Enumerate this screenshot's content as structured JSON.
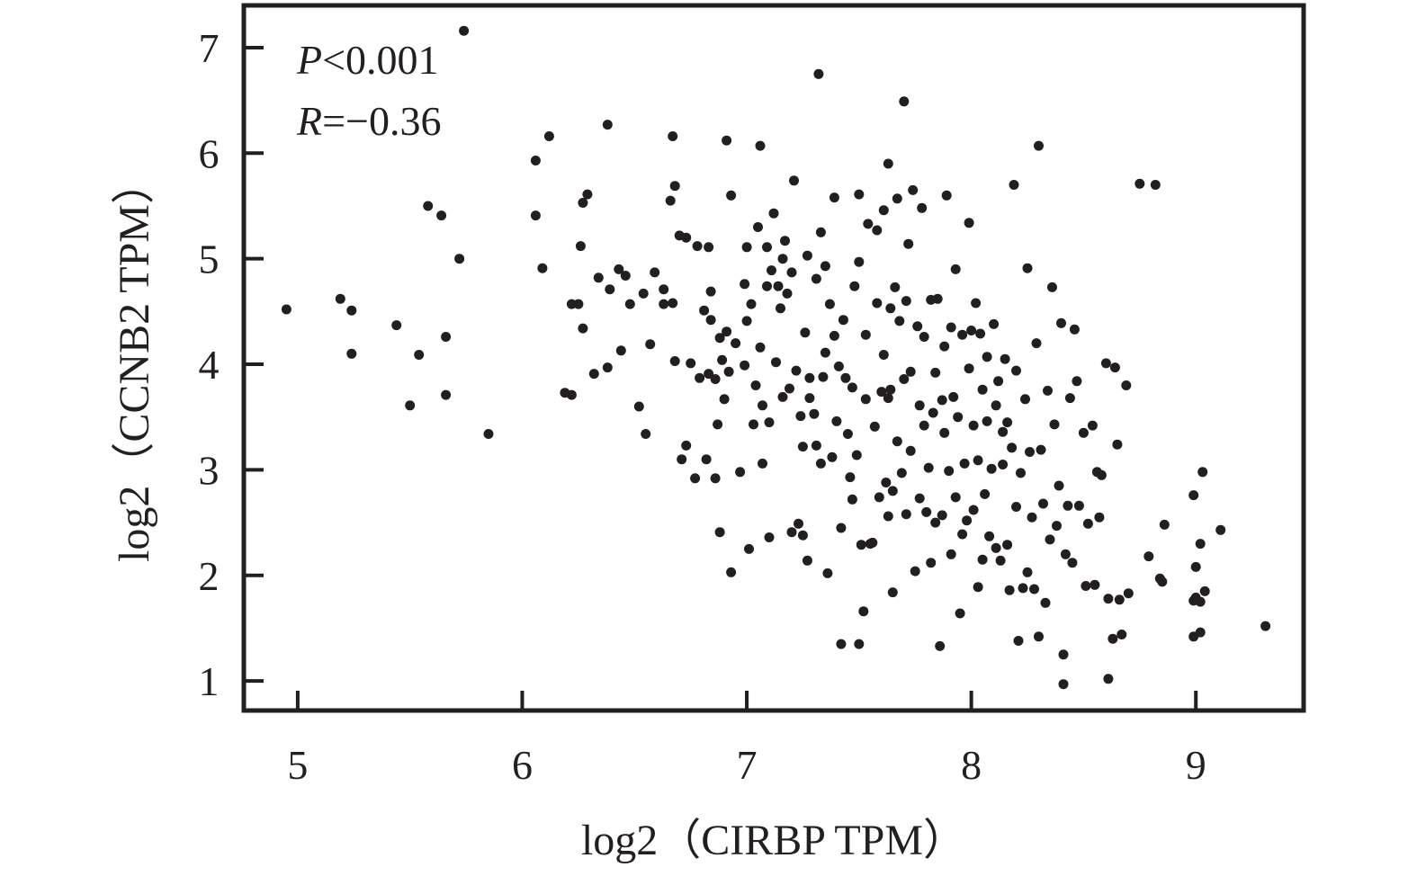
{
  "chart_data": {
    "type": "scatter",
    "xlabel": "log2（CIRBP TPM）",
    "ylabel": "log2（CCNB2 TPM）",
    "xlim": [
      4.76,
      9.48
    ],
    "ylim": [
      0.72,
      7.4
    ],
    "x_ticks": [
      5,
      6,
      7,
      8,
      9
    ],
    "y_ticks": [
      1,
      2,
      3,
      4,
      5,
      6,
      7
    ],
    "grid": false,
    "annotations": {
      "p_symbol": "P",
      "p_value": "<0.001",
      "r_symbol": "R",
      "r_value": "=−0.36"
    },
    "point_color": "#231f20",
    "points": [
      [
        4.95,
        4.52
      ],
      [
        5.19,
        4.62
      ],
      [
        5.24,
        4.51
      ],
      [
        5.24,
        4.1
      ],
      [
        5.44,
        4.37
      ],
      [
        5.5,
        3.61
      ],
      [
        5.54,
        4.09
      ],
      [
        5.58,
        5.5
      ],
      [
        5.64,
        5.41
      ],
      [
        5.66,
        4.26
      ],
      [
        5.66,
        3.71
      ],
      [
        5.72,
        5.0
      ],
      [
        5.74,
        7.16
      ],
      [
        5.85,
        3.34
      ],
      [
        6.06,
        5.93
      ],
      [
        6.06,
        5.41
      ],
      [
        6.09,
        4.91
      ],
      [
        6.12,
        6.16
      ],
      [
        6.19,
        3.73
      ],
      [
        6.22,
        4.57
      ],
      [
        6.22,
        3.71
      ],
      [
        6.25,
        4.57
      ],
      [
        6.26,
        5.12
      ],
      [
        6.27,
        4.34
      ],
      [
        6.27,
        5.53
      ],
      [
        6.29,
        5.61
      ],
      [
        6.32,
        3.91
      ],
      [
        6.34,
        4.82
      ],
      [
        6.38,
        3.97
      ],
      [
        6.38,
        6.27
      ],
      [
        6.39,
        4.71
      ],
      [
        6.43,
        4.9
      ],
      [
        6.44,
        4.13
      ],
      [
        6.46,
        4.84
      ],
      [
        6.48,
        4.57
      ],
      [
        6.52,
        3.6
      ],
      [
        6.54,
        4.67
      ],
      [
        6.55,
        3.34
      ],
      [
        6.57,
        4.19
      ],
      [
        6.59,
        4.87
      ],
      [
        6.63,
        4.71
      ],
      [
        6.63,
        4.57
      ],
      [
        6.66,
        5.55
      ],
      [
        6.67,
        4.58
      ],
      [
        6.67,
        6.16
      ],
      [
        6.68,
        4.03
      ],
      [
        6.68,
        5.69
      ],
      [
        6.7,
        5.22
      ],
      [
        6.71,
        3.1
      ],
      [
        6.73,
        5.2
      ],
      [
        6.73,
        3.23
      ],
      [
        6.75,
        4.01
      ],
      [
        6.77,
        2.92
      ],
      [
        6.78,
        5.12
      ],
      [
        6.79,
        3.87
      ],
      [
        6.81,
        4.51
      ],
      [
        6.82,
        3.1
      ],
      [
        6.83,
        5.11
      ],
      [
        6.83,
        3.91
      ],
      [
        6.84,
        4.69
      ],
      [
        6.84,
        4.42
      ],
      [
        6.86,
        2.92
      ],
      [
        6.86,
        3.86
      ],
      [
        6.87,
        3.43
      ],
      [
        6.88,
        4.25
      ],
      [
        6.88,
        2.41
      ],
      [
        6.89,
        4.04
      ],
      [
        6.9,
        3.67
      ],
      [
        6.91,
        6.12
      ],
      [
        6.91,
        4.31
      ],
      [
        6.92,
        3.93
      ],
      [
        6.93,
        2.03
      ],
      [
        6.93,
        5.6
      ],
      [
        6.95,
        4.2
      ],
      [
        6.97,
        2.98
      ],
      [
        6.99,
        4.76
      ],
      [
        6.99,
        3.99
      ],
      [
        7.0,
        4.41
      ],
      [
        7.0,
        5.11
      ],
      [
        7.01,
        2.25
      ],
      [
        7.02,
        4.57
      ],
      [
        7.03,
        3.43
      ],
      [
        7.04,
        3.8
      ],
      [
        7.05,
        5.3
      ],
      [
        7.06,
        6.07
      ],
      [
        7.06,
        4.16
      ],
      [
        7.07,
        3.61
      ],
      [
        7.07,
        3.06
      ],
      [
        7.09,
        5.11
      ],
      [
        7.09,
        4.74
      ],
      [
        7.1,
        3.45
      ],
      [
        7.1,
        2.36
      ],
      [
        7.11,
        4.89
      ],
      [
        7.12,
        5.43
      ],
      [
        7.13,
        4.02
      ],
      [
        7.14,
        4.74
      ],
      [
        7.15,
        4.53
      ],
      [
        7.16,
        3.69
      ],
      [
        7.16,
        5.0
      ],
      [
        7.17,
        5.17
      ],
      [
        7.18,
        4.67
      ],
      [
        7.19,
        3.77
      ],
      [
        7.2,
        4.87
      ],
      [
        7.2,
        2.41
      ],
      [
        7.21,
        5.74
      ],
      [
        7.22,
        3.94
      ],
      [
        7.23,
        2.49
      ],
      [
        7.24,
        3.51
      ],
      [
        7.25,
        2.38
      ],
      [
        7.25,
        3.22
      ],
      [
        7.26,
        4.3
      ],
      [
        7.27,
        5.03
      ],
      [
        7.27,
        2.14
      ],
      [
        7.28,
        3.68
      ],
      [
        7.28,
        3.87
      ],
      [
        7.3,
        3.53
      ],
      [
        7.31,
        4.81
      ],
      [
        7.31,
        3.23
      ],
      [
        7.32,
        6.75
      ],
      [
        7.33,
        3.06
      ],
      [
        7.33,
        5.25
      ],
      [
        7.34,
        3.88
      ],
      [
        7.35,
        4.93
      ],
      [
        7.35,
        4.11
      ],
      [
        7.36,
        2.02
      ],
      [
        7.37,
        4.57
      ],
      [
        7.38,
        3.12
      ],
      [
        7.39,
        5.58
      ],
      [
        7.39,
        4.27
      ],
      [
        7.4,
        3.46
      ],
      [
        7.41,
        3.98
      ],
      [
        7.42,
        1.35
      ],
      [
        7.42,
        2.45
      ],
      [
        7.43,
        4.42
      ],
      [
        7.44,
        3.87
      ],
      [
        7.45,
        3.34
      ],
      [
        7.46,
        2.93
      ],
      [
        7.47,
        3.78
      ],
      [
        7.47,
        2.72
      ],
      [
        7.48,
        4.74
      ],
      [
        7.49,
        3.14
      ],
      [
        7.5,
        1.35
      ],
      [
        7.5,
        4.97
      ],
      [
        7.5,
        5.61
      ],
      [
        7.51,
        2.29
      ],
      [
        7.52,
        1.66
      ],
      [
        7.53,
        3.67
      ],
      [
        7.53,
        4.28
      ],
      [
        7.54,
        5.33
      ],
      [
        7.55,
        2.3
      ],
      [
        7.56,
        2.31
      ],
      [
        7.57,
        3.41
      ],
      [
        7.58,
        4.58
      ],
      [
        7.58,
        5.27
      ],
      [
        7.59,
        2.74
      ],
      [
        7.6,
        3.74
      ],
      [
        7.61,
        4.09
      ],
      [
        7.61,
        5.46
      ],
      [
        7.62,
        2.88
      ],
      [
        7.63,
        2.56
      ],
      [
        7.63,
        5.9
      ],
      [
        7.64,
        4.53
      ],
      [
        7.64,
        3.76
      ],
      [
        7.65,
        1.84
      ],
      [
        7.65,
        2.8
      ],
      [
        7.66,
        4.73
      ],
      [
        7.67,
        5.57
      ],
      [
        7.67,
        3.27
      ],
      [
        7.68,
        4.41
      ],
      [
        7.69,
        2.97
      ],
      [
        7.7,
        6.49
      ],
      [
        7.7,
        3.86
      ],
      [
        7.71,
        4.6
      ],
      [
        7.71,
        2.58
      ],
      [
        7.72,
        5.14
      ],
      [
        7.73,
        3.93
      ],
      [
        7.73,
        3.18
      ],
      [
        7.74,
        5.65
      ],
      [
        7.75,
        2.04
      ],
      [
        7.76,
        4.36
      ],
      [
        7.77,
        3.61
      ],
      [
        7.77,
        2.73
      ],
      [
        7.78,
        5.48
      ],
      [
        7.79,
        3.42
      ],
      [
        7.79,
        4.26
      ],
      [
        7.8,
        2.6
      ],
      [
        7.81,
        3.02
      ],
      [
        7.82,
        4.61
      ],
      [
        7.82,
        2.12
      ],
      [
        7.83,
        3.54
      ],
      [
        7.84,
        2.5
      ],
      [
        7.84,
        3.92
      ],
      [
        7.85,
        4.62
      ],
      [
        7.86,
        1.33
      ],
      [
        7.87,
        2.57
      ],
      [
        7.87,
        3.66
      ],
      [
        7.88,
        4.17
      ],
      [
        7.88,
        3.35
      ],
      [
        7.89,
        5.6
      ],
      [
        7.9,
        2.99
      ],
      [
        7.91,
        2.2
      ],
      [
        7.91,
        4.35
      ],
      [
        7.92,
        3.69
      ],
      [
        7.93,
        2.74
      ],
      [
        7.93,
        4.9
      ],
      [
        7.94,
        3.5
      ],
      [
        7.95,
        1.64
      ],
      [
        7.96,
        2.39
      ],
      [
        7.96,
        4.28
      ],
      [
        7.97,
        3.06
      ],
      [
        7.98,
        2.52
      ],
      [
        7.99,
        5.34
      ],
      [
        7.99,
        3.96
      ],
      [
        8.0,
        4.32
      ],
      [
        8.01,
        2.62
      ],
      [
        8.01,
        3.42
      ],
      [
        8.02,
        4.58
      ],
      [
        8.03,
        1.89
      ],
      [
        8.03,
        3.09
      ],
      [
        8.04,
        4.29
      ],
      [
        8.05,
        2.15
      ],
      [
        8.05,
        3.76
      ],
      [
        8.06,
        2.77
      ],
      [
        8.07,
        3.46
      ],
      [
        8.07,
        4.07
      ],
      [
        8.08,
        2.37
      ],
      [
        8.09,
        3.01
      ],
      [
        8.1,
        4.38
      ],
      [
        8.11,
        3.61
      ],
      [
        8.11,
        2.26
      ],
      [
        8.12,
        3.84
      ],
      [
        8.13,
        2.14
      ],
      [
        8.14,
        3.05
      ],
      [
        8.15,
        4.05
      ],
      [
        8.16,
        2.29
      ],
      [
        8.16,
        3.45
      ],
      [
        8.17,
        1.86
      ],
      [
        8.18,
        3.21
      ],
      [
        8.19,
        5.7
      ],
      [
        8.2,
        2.65
      ],
      [
        8.2,
        3.94
      ],
      [
        8.21,
        1.38
      ],
      [
        8.22,
        2.97
      ],
      [
        8.23,
        1.88
      ],
      [
        8.24,
        3.67
      ],
      [
        8.25,
        2.03
      ],
      [
        8.25,
        4.91
      ],
      [
        8.26,
        3.17
      ],
      [
        8.27,
        2.55
      ],
      [
        8.28,
        1.87
      ],
      [
        8.29,
        4.2
      ],
      [
        8.3,
        6.07
      ],
      [
        8.3,
        1.42
      ],
      [
        8.31,
        3.19
      ],
      [
        8.32,
        2.68
      ],
      [
        8.33,
        1.74
      ],
      [
        8.34,
        3.75
      ],
      [
        8.35,
        2.34
      ],
      [
        8.36,
        4.73
      ],
      [
        8.37,
        3.43
      ],
      [
        8.38,
        2.47
      ],
      [
        8.39,
        2.85
      ],
      [
        8.4,
        4.39
      ],
      [
        8.41,
        1.25
      ],
      [
        8.41,
        0.97
      ],
      [
        8.42,
        2.2
      ],
      [
        8.43,
        2.66
      ],
      [
        8.44,
        3.68
      ],
      [
        8.45,
        2.12
      ],
      [
        8.46,
        4.33
      ],
      [
        8.47,
        3.84
      ],
      [
        8.48,
        2.66
      ],
      [
        8.5,
        3.35
      ],
      [
        8.51,
        1.9
      ],
      [
        8.52,
        2.49
      ],
      [
        8.54,
        3.42
      ],
      [
        8.55,
        1.91
      ],
      [
        8.56,
        2.98
      ],
      [
        8.57,
        2.55
      ],
      [
        8.58,
        2.95
      ],
      [
        8.6,
        4.01
      ],
      [
        8.61,
        1.78
      ],
      [
        8.61,
        1.02
      ],
      [
        8.63,
        1.4
      ],
      [
        8.64,
        3.97
      ],
      [
        8.65,
        3.24
      ],
      [
        8.66,
        1.77
      ],
      [
        8.67,
        1.44
      ],
      [
        8.69,
        3.8
      ],
      [
        8.7,
        1.83
      ],
      [
        8.75,
        5.71
      ],
      [
        8.79,
        2.18
      ],
      [
        8.82,
        5.7
      ],
      [
        8.84,
        1.97
      ],
      [
        8.85,
        1.94
      ],
      [
        8.86,
        2.48
      ],
      [
        8.99,
        2.76
      ],
      [
        8.99,
        1.76
      ],
      [
        8.99,
        1.42
      ],
      [
        9.0,
        1.79
      ],
      [
        9.0,
        2.08
      ],
      [
        9.02,
        2.3
      ],
      [
        9.02,
        1.46
      ],
      [
        9.03,
        2.98
      ],
      [
        9.04,
        1.85
      ],
      [
        9.11,
        2.43
      ],
      [
        9.31,
        1.52
      ],
      [
        9.02,
        1.75
      ],
      [
        8.14,
        3.36
      ],
      [
        7.63,
        3.68
      ]
    ]
  }
}
